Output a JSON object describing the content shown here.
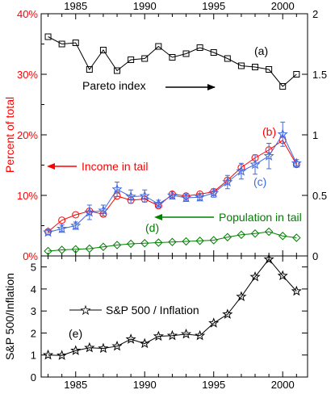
{
  "chart_data": [
    {
      "type": "line",
      "panel": "top",
      "xlim": [
        1982.5,
        2001.8
      ],
      "x_ticks": [
        "1985",
        "1990",
        "1995",
        "2000"
      ],
      "left_axis": {
        "label": "Percent of total",
        "ylim": [
          0,
          40
        ],
        "tick_labels": [
          "0%",
          "10%",
          "20%",
          "30%",
          "40%"
        ],
        "tick_values": [
          0,
          10,
          20,
          30,
          40
        ],
        "color": "#ff0000"
      },
      "right_axis": {
        "ylim": [
          0,
          2
        ],
        "tick_labels": [
          "0",
          "0.5",
          "1",
          "1.5",
          "2"
        ],
        "tick_values": [
          0,
          0.5,
          1,
          1.5,
          2
        ]
      },
      "series": [
        {
          "name": "Pareto index",
          "axis": "right",
          "marker": "square",
          "color": "#000000",
          "x": [
            1983,
            1984,
            1985,
            1986,
            1987,
            1988,
            1989,
            1990,
            1991,
            1992,
            1993,
            1994,
            1995,
            1996,
            1997,
            1998,
            1999,
            2000,
            2001
          ],
          "values": [
            1.81,
            1.75,
            1.76,
            1.54,
            1.7,
            1.53,
            1.62,
            1.63,
            1.73,
            1.64,
            1.67,
            1.72,
            1.68,
            1.63,
            1.57,
            1.56,
            1.54,
            1.4,
            1.5
          ]
        },
        {
          "name": "Income in tail",
          "axis": "left",
          "marker": "circle",
          "color": "#ff0000",
          "x": [
            1983,
            1984,
            1985,
            1986,
            1987,
            1988,
            1989,
            1990,
            1991,
            1992,
            1993,
            1994,
            1995,
            1996,
            1997,
            1998,
            1999,
            2000,
            2001
          ],
          "values": [
            4.0,
            5.9,
            6.8,
            7.4,
            6.9,
            9.9,
            9.2,
            9.4,
            8.3,
            10.2,
            9.9,
            10.2,
            10.6,
            12.5,
            14.6,
            16.2,
            17.5,
            19.1,
            15.1
          ]
        },
        {
          "name": "(c)",
          "axis": "left",
          "marker": "star",
          "color": "#4169e1",
          "x": [
            1983,
            1984,
            1985,
            1986,
            1987,
            1988,
            1989,
            1990,
            1991,
            1992,
            1993,
            1994,
            1995,
            1996,
            1997,
            1998,
            1999,
            2000,
            2001
          ],
          "values": [
            3.9,
            4.5,
            5.0,
            7.2,
            7.5,
            11.0,
            9.8,
            9.9,
            8.6,
            10.0,
            9.6,
            9.7,
            10.4,
            12.2,
            14.0,
            15.1,
            16.5,
            20.1,
            15.3
          ],
          "errors": [
            0.4,
            0.6,
            0.6,
            1.2,
            0.9,
            1.2,
            1.1,
            1.0,
            0.6,
            0.6,
            0.6,
            0.6,
            0.7,
            1.1,
            1.3,
            1.6,
            2.1,
            2.0,
            0.6
          ]
        },
        {
          "name": "Population in tail",
          "axis": "left",
          "marker": "diamond",
          "color": "#008000",
          "x": [
            1983,
            1984,
            1985,
            1986,
            1987,
            1988,
            1989,
            1990,
            1991,
            1992,
            1993,
            1994,
            1995,
            1996,
            1997,
            1998,
            1999,
            2000,
            2001
          ],
          "values": [
            0.8,
            1.0,
            1.1,
            1.2,
            1.5,
            1.8,
            2.0,
            2.1,
            2.2,
            2.3,
            2.4,
            2.5,
            2.6,
            3.1,
            3.5,
            3.7,
            4.0,
            3.3,
            3.0
          ]
        }
      ],
      "annotations": {
        "a": "(a)",
        "b": "(b)",
        "c": "(c)",
        "d": "(d)",
        "pareto": "Pareto index",
        "income": "Income in tail",
        "population": "Population in tail"
      }
    },
    {
      "type": "line",
      "panel": "bottom",
      "xlim": [
        1982.5,
        2001.8
      ],
      "x_ticks": [
        "1985",
        "1990",
        "1995",
        "2000"
      ],
      "ylabel": "S&P 500/Inflation",
      "ylim": [
        0,
        5.5
      ],
      "tick_labels": [
        "0",
        "1",
        "2",
        "3",
        "4",
        "5"
      ],
      "tick_values": [
        0,
        1,
        2,
        3,
        4,
        5
      ],
      "series": [
        {
          "name": "S&P 500 / Inflation",
          "marker": "star",
          "color": "#000000",
          "x": [
            1983,
            1984,
            1985,
            1986,
            1987,
            1988,
            1989,
            1990,
            1991,
            1992,
            1993,
            1994,
            1995,
            1996,
            1997,
            1998,
            1999,
            2000,
            2001
          ],
          "values": [
            1.0,
            0.98,
            1.2,
            1.33,
            1.3,
            1.4,
            1.72,
            1.52,
            1.85,
            1.88,
            1.95,
            1.88,
            2.45,
            2.85,
            3.65,
            4.55,
            5.35,
            4.6,
            3.9
          ]
        }
      ],
      "annotations": {
        "e": "(e)"
      }
    }
  ]
}
